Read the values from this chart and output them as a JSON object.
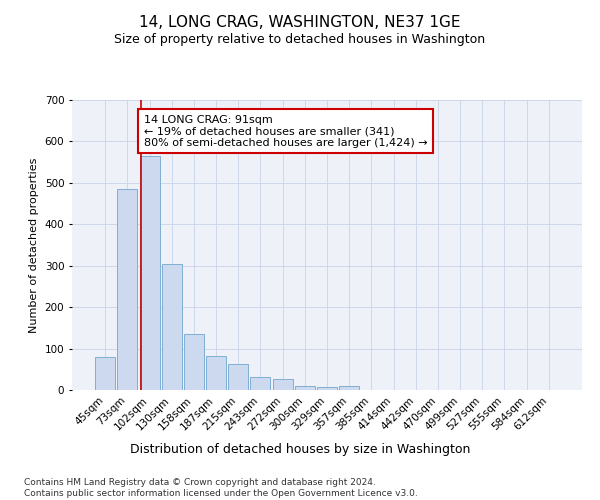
{
  "title": "14, LONG CRAG, WASHINGTON, NE37 1GE",
  "subtitle": "Size of property relative to detached houses in Washington",
  "xlabel": "Distribution of detached houses by size in Washington",
  "ylabel": "Number of detached properties",
  "categories": [
    "45sqm",
    "73sqm",
    "102sqm",
    "130sqm",
    "158sqm",
    "187sqm",
    "215sqm",
    "243sqm",
    "272sqm",
    "300sqm",
    "329sqm",
    "357sqm",
    "385sqm",
    "414sqm",
    "442sqm",
    "470sqm",
    "499sqm",
    "527sqm",
    "555sqm",
    "584sqm",
    "612sqm"
  ],
  "values": [
    80,
    485,
    565,
    305,
    135,
    83,
    63,
    32,
    27,
    10,
    7,
    10,
    0,
    0,
    0,
    0,
    0,
    0,
    0,
    0,
    0
  ],
  "bar_color": "#ccd9ee",
  "bar_edge_color": "#7fafd4",
  "red_line_x": 1.62,
  "annotation_text": "14 LONG CRAG: 91sqm\n← 19% of detached houses are smaller (341)\n80% of semi-detached houses are larger (1,424) →",
  "annotation_box_color": "#ffffff",
  "annotation_box_edge": "#cc0000",
  "ylim": [
    0,
    700
  ],
  "yticks": [
    0,
    100,
    200,
    300,
    400,
    500,
    600,
    700
  ],
  "footnote": "Contains HM Land Registry data © Crown copyright and database right 2024.\nContains public sector information licensed under the Open Government Licence v3.0.",
  "title_fontsize": 11,
  "subtitle_fontsize": 9,
  "xlabel_fontsize": 9,
  "ylabel_fontsize": 8,
  "tick_fontsize": 7.5,
  "annotation_fontsize": 8,
  "footnote_fontsize": 6.5
}
